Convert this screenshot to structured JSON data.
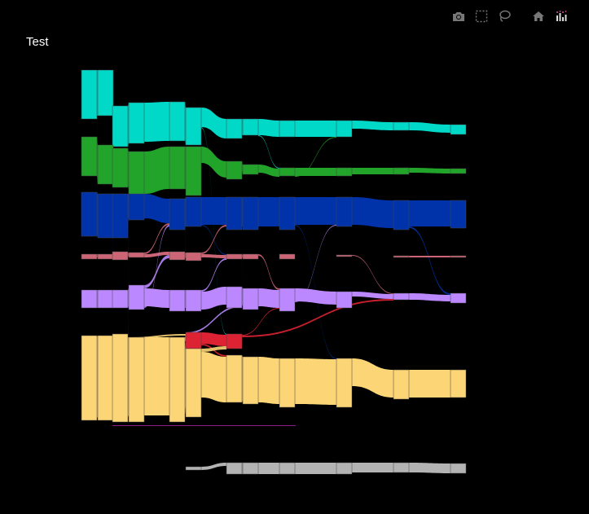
{
  "title": "Test",
  "modebar": {
    "icons": [
      "camera-icon",
      "box-select-icon",
      "lasso-select-icon",
      "home-icon",
      "plotly-logo-icon"
    ]
  },
  "colors": {
    "background": "#000000",
    "teal": "#00d8c8",
    "green": "#22a32a",
    "blue": "#0033aa",
    "pink": "#cc6677",
    "purple": "#bb88ff",
    "red": "#dd2233",
    "yellow": "#fcd576",
    "gray": "#b3b3b3",
    "magenta": "#aa22aa"
  },
  "chart_data": {
    "type": "sankey",
    "columns": 12,
    "categories": [
      "teal",
      "green",
      "blue",
      "pink",
      "purple",
      "red",
      "yellow",
      "gray"
    ],
    "nodes": [
      {
        "id": "teal0",
        "col": 0,
        "cat": "teal",
        "value": 60
      },
      {
        "id": "teal1",
        "col": 1,
        "cat": "teal",
        "value": 56
      },
      {
        "id": "teal2",
        "col": 2,
        "cat": "teal",
        "value": 50
      },
      {
        "id": "teal3",
        "col": 3,
        "cat": "teal",
        "value": 50
      },
      {
        "id": "teal4",
        "col": 4,
        "cat": "teal",
        "value": 48
      },
      {
        "id": "teal5",
        "col": 5,
        "cat": "teal",
        "value": 46
      },
      {
        "id": "teal6",
        "col": 6,
        "cat": "teal",
        "value": 24
      },
      {
        "id": "teal7",
        "col": 7,
        "cat": "teal",
        "value": 20
      },
      {
        "id": "teal8",
        "col": 8,
        "cat": "teal",
        "value": 20
      },
      {
        "id": "teal9",
        "col": 9,
        "cat": "teal",
        "value": 20
      },
      {
        "id": "teal10",
        "col": 10,
        "cat": "teal",
        "value": 10
      },
      {
        "id": "teal11",
        "col": 11,
        "cat": "teal",
        "value": 12
      },
      {
        "id": "green0",
        "col": 0,
        "cat": "green",
        "value": 48
      },
      {
        "id": "green1",
        "col": 1,
        "cat": "green",
        "value": 48
      },
      {
        "id": "green2",
        "col": 2,
        "cat": "green",
        "value": 48
      },
      {
        "id": "green3",
        "col": 3,
        "cat": "green",
        "value": 62
      },
      {
        "id": "green4",
        "col": 4,
        "cat": "green",
        "value": 52
      },
      {
        "id": "green5",
        "col": 5,
        "cat": "green",
        "value": 60
      },
      {
        "id": "green6",
        "col": 6,
        "cat": "green",
        "value": 22
      },
      {
        "id": "green7",
        "col": 7,
        "cat": "green",
        "value": 12
      },
      {
        "id": "green8",
        "col": 8,
        "cat": "green",
        "value": 10
      },
      {
        "id": "green9",
        "col": 9,
        "cat": "green",
        "value": 10
      },
      {
        "id": "green10",
        "col": 10,
        "cat": "green",
        "value": 8
      },
      {
        "id": "green11",
        "col": 11,
        "cat": "green",
        "value": 6
      },
      {
        "id": "blue0",
        "col": 0,
        "cat": "blue",
        "value": 54
      },
      {
        "id": "blue1",
        "col": 1,
        "cat": "blue",
        "value": 54
      },
      {
        "id": "blue2",
        "col": 2,
        "cat": "blue",
        "value": 54
      },
      {
        "id": "blue3",
        "col": 3,
        "cat": "blue",
        "value": 32
      },
      {
        "id": "blue4",
        "col": 4,
        "cat": "blue",
        "value": 38
      },
      {
        "id": "blue5",
        "col": 5,
        "cat": "blue",
        "value": 36
      },
      {
        "id": "blue6",
        "col": 6,
        "cat": "blue",
        "value": 40
      },
      {
        "id": "blue7",
        "col": 7,
        "cat": "blue",
        "value": 40
      },
      {
        "id": "blue8",
        "col": 8,
        "cat": "blue",
        "value": 40
      },
      {
        "id": "blue9",
        "col": 9,
        "cat": "blue",
        "value": 36
      },
      {
        "id": "blue10",
        "col": 10,
        "cat": "blue",
        "value": 36
      },
      {
        "id": "blue11",
        "col": 11,
        "cat": "blue",
        "value": 34
      },
      {
        "id": "pink0",
        "col": 0,
        "cat": "pink",
        "value": 6
      },
      {
        "id": "pink1",
        "col": 1,
        "cat": "pink",
        "value": 6
      },
      {
        "id": "pink2",
        "col": 2,
        "cat": "pink",
        "value": 10
      },
      {
        "id": "pink3",
        "col": 3,
        "cat": "pink",
        "value": 6
      },
      {
        "id": "pink4",
        "col": 4,
        "cat": "pink",
        "value": 10
      },
      {
        "id": "pink5",
        "col": 5,
        "cat": "pink",
        "value": 10
      },
      {
        "id": "pink6",
        "col": 6,
        "cat": "pink",
        "value": 6
      },
      {
        "id": "pink7",
        "col": 7,
        "cat": "pink",
        "value": 6
      },
      {
        "id": "pink8",
        "col": 8,
        "cat": "pink",
        "value": 6
      },
      {
        "id": "pink9",
        "col": 9,
        "cat": "pink",
        "value": 2
      },
      {
        "id": "pink10",
        "col": 10,
        "cat": "pink",
        "value": 2
      },
      {
        "id": "pink11",
        "col": 11,
        "cat": "pink",
        "value": 2
      },
      {
        "id": "purple0",
        "col": 0,
        "cat": "purple",
        "value": 22
      },
      {
        "id": "purple1",
        "col": 1,
        "cat": "purple",
        "value": 22
      },
      {
        "id": "purple2",
        "col": 2,
        "cat": "purple",
        "value": 22
      },
      {
        "id": "purple3",
        "col": 3,
        "cat": "purple",
        "value": 30
      },
      {
        "id": "purple4",
        "col": 4,
        "cat": "purple",
        "value": 26
      },
      {
        "id": "purple5",
        "col": 5,
        "cat": "purple",
        "value": 26
      },
      {
        "id": "purple6",
        "col": 6,
        "cat": "purple",
        "value": 26
      },
      {
        "id": "purple7",
        "col": 7,
        "cat": "purple",
        "value": 26
      },
      {
        "id": "purple8",
        "col": 8,
        "cat": "purple",
        "value": 28
      },
      {
        "id": "purple9",
        "col": 9,
        "cat": "purple",
        "value": 20
      },
      {
        "id": "purple10",
        "col": 10,
        "cat": "purple",
        "value": 8
      },
      {
        "id": "purple11",
        "col": 11,
        "cat": "purple",
        "value": 12
      },
      {
        "id": "red5",
        "col": 5,
        "cat": "red",
        "value": 20
      },
      {
        "id": "red6",
        "col": 6,
        "cat": "red",
        "value": 18
      },
      {
        "id": "yellow0",
        "col": 0,
        "cat": "yellow",
        "value": 104
      },
      {
        "id": "yellow1",
        "col": 1,
        "cat": "yellow",
        "value": 104
      },
      {
        "id": "yellow2",
        "col": 2,
        "cat": "yellow",
        "value": 108
      },
      {
        "id": "yellow3",
        "col": 3,
        "cat": "yellow",
        "value": 104
      },
      {
        "id": "yellow4",
        "col": 4,
        "cat": "yellow",
        "value": 104
      },
      {
        "id": "yellow5",
        "col": 5,
        "cat": "yellow",
        "value": 84
      },
      {
        "id": "yellow6",
        "col": 6,
        "cat": "yellow",
        "value": 58
      },
      {
        "id": "yellow7",
        "col": 7,
        "cat": "yellow",
        "value": 58
      },
      {
        "id": "yellow8",
        "col": 8,
        "cat": "yellow",
        "value": 60
      },
      {
        "id": "yellow9",
        "col": 9,
        "cat": "yellow",
        "value": 60
      },
      {
        "id": "yellow10",
        "col": 10,
        "cat": "yellow",
        "value": 36
      },
      {
        "id": "yellow11",
        "col": 11,
        "cat": "yellow",
        "value": 34
      },
      {
        "id": "gray5",
        "col": 5,
        "cat": "gray",
        "value": 4
      },
      {
        "id": "gray6",
        "col": 6,
        "cat": "gray",
        "value": 14
      },
      {
        "id": "gray7",
        "col": 7,
        "cat": "gray",
        "value": 14
      },
      {
        "id": "gray8",
        "col": 8,
        "cat": "gray",
        "value": 14
      },
      {
        "id": "gray9",
        "col": 9,
        "cat": "gray",
        "value": 14
      },
      {
        "id": "gray10",
        "col": 10,
        "cat": "gray",
        "value": 12
      },
      {
        "id": "gray11",
        "col": 11,
        "cat": "gray",
        "value": 12
      }
    ],
    "links": [
      {
        "source": "teal0",
        "target": "teal1",
        "value": 56
      },
      {
        "source": "teal1",
        "target": "teal2",
        "value": 50
      },
      {
        "source": "teal2",
        "target": "teal3",
        "value": 50
      },
      {
        "source": "teal3",
        "target": "teal4",
        "value": 48
      },
      {
        "source": "teal4",
        "target": "teal5",
        "value": 46
      },
      {
        "source": "teal5",
        "target": "teal6",
        "value": 24
      },
      {
        "source": "teal5",
        "target": "red6",
        "value": 1
      },
      {
        "source": "teal6",
        "target": "teal7",
        "value": 20
      },
      {
        "source": "teal7",
        "target": "teal8",
        "value": 20
      },
      {
        "source": "teal7",
        "target": "green8",
        "value": 1
      },
      {
        "source": "teal8",
        "target": "teal9",
        "value": 20
      },
      {
        "source": "teal9",
        "target": "teal10",
        "value": 10
      },
      {
        "source": "teal10",
        "target": "teal11",
        "value": 10
      },
      {
        "source": "teal0",
        "target": "blue1",
        "value": 2
      },
      {
        "source": "green0",
        "target": "green1",
        "value": 48
      },
      {
        "source": "green1",
        "target": "green2",
        "value": 46
      },
      {
        "source": "green2",
        "target": "green3",
        "value": 46
      },
      {
        "source": "green3",
        "target": "green4",
        "value": 52
      },
      {
        "source": "green4",
        "target": "green5",
        "value": 52
      },
      {
        "source": "green5",
        "target": "green6",
        "value": 20
      },
      {
        "source": "green6",
        "target": "green7",
        "value": 12
      },
      {
        "source": "green7",
        "target": "green8",
        "value": 10
      },
      {
        "source": "green8",
        "target": "green9",
        "value": 10
      },
      {
        "source": "green9",
        "target": "green10",
        "value": 8
      },
      {
        "source": "green10",
        "target": "green11",
        "value": 6
      },
      {
        "source": "green8",
        "target": "teal9",
        "value": 1
      },
      {
        "source": "green1",
        "target": "teal2",
        "value": 2
      },
      {
        "source": "blue0",
        "target": "blue1",
        "value": 52
      },
      {
        "source": "blue1",
        "target": "blue2",
        "value": 52
      },
      {
        "source": "blue2",
        "target": "blue3",
        "value": 30
      },
      {
        "source": "blue2",
        "target": "purple3",
        "value": 4
      },
      {
        "source": "blue3",
        "target": "blue4",
        "value": 30
      },
      {
        "source": "blue4",
        "target": "blue5",
        "value": 34
      },
      {
        "source": "blue5",
        "target": "blue6",
        "value": 34
      },
      {
        "source": "blue6",
        "target": "blue7",
        "value": 36
      },
      {
        "source": "blue7",
        "target": "blue8",
        "value": 36
      },
      {
        "source": "blue8",
        "target": "blue9",
        "value": 34
      },
      {
        "source": "blue9",
        "target": "blue10",
        "value": 34
      },
      {
        "source": "blue10",
        "target": "blue11",
        "value": 32
      },
      {
        "source": "blue5",
        "target": "pink6",
        "value": 1
      },
      {
        "source": "blue6",
        "target": "pink7",
        "value": 1
      },
      {
        "source": "blue8",
        "target": "yellow9",
        "value": 1
      },
      {
        "source": "blue10",
        "target": "purple11",
        "value": 2
      },
      {
        "source": "blue1",
        "target": "pink2",
        "value": 2
      },
      {
        "source": "pink0",
        "target": "pink1",
        "value": 4
      },
      {
        "source": "pink1",
        "target": "pink2",
        "value": 4
      },
      {
        "source": "pink2",
        "target": "blue3",
        "value": 2
      },
      {
        "source": "pink2",
        "target": "pink3",
        "value": 4
      },
      {
        "source": "pink3",
        "target": "blue4",
        "value": 2
      },
      {
        "source": "pink3",
        "target": "pink4",
        "value": 4
      },
      {
        "source": "pink4",
        "target": "blue5",
        "value": 2
      },
      {
        "source": "pink4",
        "target": "pink5",
        "value": 6
      },
      {
        "source": "pink5",
        "target": "blue6",
        "value": 2
      },
      {
        "source": "pink5",
        "target": "pink6",
        "value": 4
      },
      {
        "source": "pink6",
        "target": "pink7",
        "value": 4
      },
      {
        "source": "pink7",
        "target": "purple8",
        "value": 2
      },
      {
        "source": "pink9",
        "target": "purple10",
        "value": 1
      },
      {
        "source": "pink10",
        "target": "pink11",
        "value": 2
      },
      {
        "source": "pink0",
        "target": "yellow1",
        "value": 1
      },
      {
        "source": "purple0",
        "target": "purple1",
        "value": 22
      },
      {
        "source": "purple1",
        "target": "purple2",
        "value": 22
      },
      {
        "source": "purple2",
        "target": "purple3",
        "value": 22
      },
      {
        "source": "purple3",
        "target": "pink4",
        "value": 4
      },
      {
        "source": "purple3",
        "target": "purple4",
        "value": 22
      },
      {
        "source": "purple4",
        "target": "purple5",
        "value": 22
      },
      {
        "source": "purple5",
        "target": "pink6",
        "value": 2
      },
      {
        "source": "purple5",
        "target": "purple6",
        "value": 22
      },
      {
        "source": "purple6",
        "target": "purple7",
        "value": 22
      },
      {
        "source": "purple7",
        "target": "purple8",
        "value": 22
      },
      {
        "source": "purple8",
        "target": "purple9",
        "value": 16
      },
      {
        "source": "purple9",
        "target": "purple10",
        "value": 6
      },
      {
        "source": "purple10",
        "target": "purple11",
        "value": 8
      },
      {
        "source": "purple3",
        "target": "blue4",
        "value": 2
      },
      {
        "source": "purple8",
        "target": "blue9",
        "value": 1
      },
      {
        "source": "purple6",
        "target": "pink7",
        "value": 1
      },
      {
        "source": "purple6",
        "target": "red5",
        "value": 2
      },
      {
        "source": "red5",
        "target": "red6",
        "value": 14
      },
      {
        "source": "red5",
        "target": "yellow6",
        "value": 2
      },
      {
        "source": "red6",
        "target": "purple7",
        "value": 1
      },
      {
        "source": "red6",
        "target": "purple8",
        "value": 1
      },
      {
        "source": "red6",
        "target": "purple10",
        "value": 2
      },
      {
        "source": "yellow0",
        "target": "yellow1",
        "value": 100
      },
      {
        "source": "yellow1",
        "target": "yellow2",
        "value": 100
      },
      {
        "source": "yellow2",
        "target": "green3",
        "value": 4
      },
      {
        "source": "yellow2",
        "target": "red5",
        "value": 2
      },
      {
        "source": "yellow2",
        "target": "yellow3",
        "value": 96
      },
      {
        "source": "yellow3",
        "target": "yellow4",
        "value": 96
      },
      {
        "source": "yellow4",
        "target": "red5",
        "value": 6
      },
      {
        "source": "yellow4",
        "target": "yellow5",
        "value": 80
      },
      {
        "source": "yellow5",
        "target": "red6",
        "value": 4
      },
      {
        "source": "yellow5",
        "target": "yellow6",
        "value": 56
      },
      {
        "source": "yellow6",
        "target": "yellow7",
        "value": 56
      },
      {
        "source": "yellow7",
        "target": "yellow8",
        "value": 56
      },
      {
        "source": "yellow8",
        "target": "yellow9",
        "value": 56
      },
      {
        "source": "yellow9",
        "target": "yellow10",
        "value": 34
      },
      {
        "source": "yellow10",
        "target": "yellow11",
        "value": 34
      },
      {
        "source": "yellow1",
        "target": "magenta",
        "value": 0
      },
      {
        "source": "gray5",
        "target": "gray6",
        "value": 4
      },
      {
        "source": "gray6",
        "target": "gray7",
        "value": 14
      },
      {
        "source": "gray7",
        "target": "gray8",
        "value": 14
      },
      {
        "source": "gray8",
        "target": "gray9",
        "value": 14
      },
      {
        "source": "gray9",
        "target": "gray10",
        "value": 12
      },
      {
        "source": "gray10",
        "target": "gray11",
        "value": 12
      }
    ]
  }
}
